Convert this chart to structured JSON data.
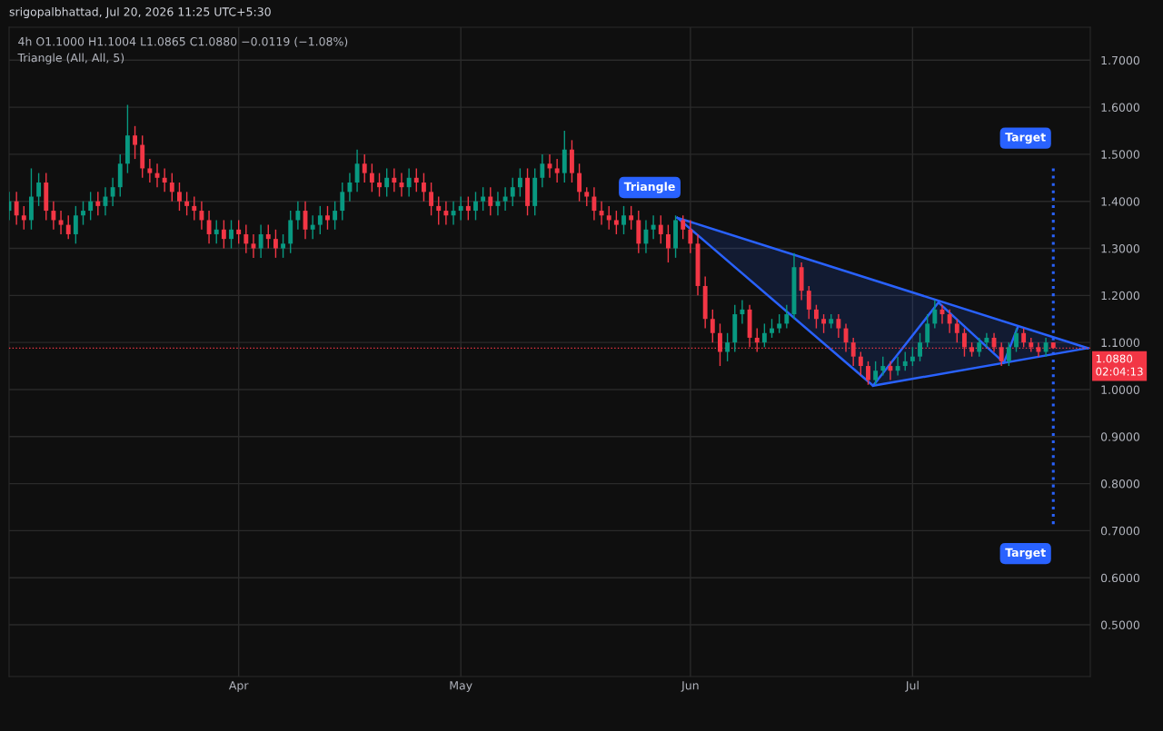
{
  "chart_data": {
    "type": "candlestick",
    "title": "4h O1.1000 H1.1004 L1.0865 C1.0880 −0.0119 (−1.08%)",
    "subtitle": "Triangle (All, All, 5)",
    "annotations": [
      "srigopalbhattad, Jul 20, 2026 11:25 UTC+5:30",
      {
        "text": "Triangle",
        "x": "2026-05-30T06:00",
        "y": 1.365
      },
      {
        "text": "Target",
        "x": "2026-07-20",
        "y": 1.47
      },
      {
        "text": "Target",
        "x": "2026-07-20",
        "y": 0.705
      }
    ],
    "colors": [
      "#089981",
      "#f23645",
      "#f23645",
      "#089981",
      "#089981",
      "#f23645",
      "#f23645",
      "#f23645",
      "#f23645",
      "#089981",
      "#089981",
      "#089981",
      "#f23645",
      "#089981",
      "#089981",
      "#089981",
      "#089981",
      "#f23645",
      "#f23645",
      "#f23645",
      "#f23645",
      "#f23645",
      "#f23645",
      "#f23645",
      "#f23645",
      "#f23645",
      "#f23645",
      "#f23645",
      "#089981",
      "#f23645",
      "#089981",
      "#f23645",
      "#f23645",
      "#f23645",
      "#089981",
      "#f23645",
      "#f23645",
      "#089981",
      "#089981",
      "#089981",
      "#f23645",
      "#089981",
      "#089981",
      "#f23645",
      "#089981",
      "#089981",
      "#089981",
      "#089981",
      "#f23645",
      "#f23645",
      "#f23645",
      "#089981",
      "#f23645",
      "#f23645",
      "#089981",
      "#f23645",
      "#f23645",
      "#f23645",
      "#f23645",
      "#f23645",
      "#089981",
      "#089981",
      "#f23645",
      "#089981",
      "#089981",
      "#f23645",
      "#089981",
      "#089981",
      "#089981",
      "#089981",
      "#f23645",
      "#089981",
      "#089981",
      "#f23645",
      "#f23645",
      "#089981",
      "#f23645",
      "#f23645",
      "#f23645",
      "#f23645",
      "#f23645",
      "#f23645",
      "#f23645",
      "#089981",
      "#f23645",
      "#f23645",
      "#089981",
      "#089981",
      "#f23645",
      "#f23645",
      "#089981",
      "#f23645",
      "#f23645",
      "#f23645",
      "#f23645",
      "#f23645",
      "#f23645",
      "#089981",
      "#089981",
      "#089981",
      "#f23645",
      "#f23645",
      "#089981",
      "#089981",
      "#089981",
      "#089981",
      "#089981",
      "#f23645",
      "#f23645",
      "#f23645",
      "#f23645",
      "#089981",
      "#f23645",
      "#f23645",
      "#f23645",
      "#f23645",
      "#f23645",
      "#089981",
      "#089981",
      "#f23645",
      "#089981",
      "#089981",
      "#089981",
      "#089981",
      "#089981",
      "#089981",
      "#f23645",
      "#f23645",
      "#f23645",
      "#f23645",
      "#f23645",
      "#089981",
      "#089981",
      "#f23645",
      "#f23645",
      "#089981",
      "#089981",
      "#f23645",
      "#f23645",
      "#f23645",
      "#089981",
      "#f23645"
    ],
    "x": [
      "2026-03-01",
      "2026-03-02",
      "2026-03-03",
      "2026-03-04",
      "2026-03-05",
      "2026-03-06",
      "2026-03-07",
      "2026-03-08",
      "2026-03-09",
      "2026-03-10",
      "2026-03-11",
      "2026-03-12",
      "2026-03-13",
      "2026-03-14",
      "2026-03-15",
      "2026-03-16",
      "2026-03-17",
      "2026-03-18",
      "2026-03-19",
      "2026-03-20",
      "2026-03-21",
      "2026-03-22",
      "2026-03-23",
      "2026-03-24",
      "2026-03-25",
      "2026-03-26",
      "2026-03-27",
      "2026-03-28",
      "2026-03-29",
      "2026-03-30",
      "2026-03-31",
      "2026-04-01",
      "2026-04-02",
      "2026-04-03",
      "2026-04-04",
      "2026-04-05",
      "2026-04-06",
      "2026-04-07",
      "2026-04-08",
      "2026-04-09",
      "2026-04-10",
      "2026-04-11",
      "2026-04-12",
      "2026-04-13",
      "2026-04-14",
      "2026-04-15",
      "2026-04-16",
      "2026-04-17",
      "2026-04-18",
      "2026-04-19",
      "2026-04-20",
      "2026-04-21",
      "2026-04-22",
      "2026-04-23",
      "2026-04-24",
      "2026-04-25",
      "2026-04-26",
      "2026-04-27",
      "2026-04-28",
      "2026-04-29",
      "2026-04-30",
      "2026-05-01",
      "2026-05-02",
      "2026-05-03",
      "2026-05-04",
      "2026-05-05",
      "2026-05-06",
      "2026-05-07",
      "2026-05-08",
      "2026-05-09",
      "2026-05-10",
      "2026-05-11",
      "2026-05-12",
      "2026-05-13",
      "2026-05-14",
      "2026-05-15",
      "2026-05-16",
      "2026-05-17",
      "2026-05-18",
      "2026-05-19",
      "2026-05-20",
      "2026-05-21",
      "2026-05-22",
      "2026-05-23",
      "2026-05-24",
      "2026-05-25",
      "2026-05-26",
      "2026-05-27",
      "2026-05-28",
      "2026-05-29",
      "2026-05-30",
      "2026-05-31",
      "2026-06-01",
      "2026-06-02",
      "2026-06-03",
      "2026-06-04",
      "2026-06-05",
      "2026-06-06",
      "2026-06-07",
      "2026-06-08",
      "2026-06-09",
      "2026-06-10",
      "2026-06-11",
      "2026-06-12",
      "2026-06-13",
      "2026-06-14",
      "2026-06-15",
      "2026-06-16",
      "2026-06-17",
      "2026-06-18",
      "2026-06-19",
      "2026-06-20",
      "2026-06-21",
      "2026-06-22",
      "2026-06-23",
      "2026-06-24",
      "2026-06-25",
      "2026-06-26",
      "2026-06-27",
      "2026-06-28",
      "2026-06-29",
      "2026-06-30",
      "2026-07-01",
      "2026-07-02",
      "2026-07-03",
      "2026-07-04",
      "2026-07-05",
      "2026-07-06",
      "2026-07-07",
      "2026-07-08",
      "2026-07-09",
      "2026-07-10",
      "2026-07-11",
      "2026-07-12",
      "2026-07-13",
      "2026-07-14",
      "2026-07-15",
      "2026-07-16",
      "2026-07-17",
      "2026-07-18",
      "2026-07-19",
      "2026-07-20"
    ],
    "ohlc": [
      [
        1.38,
        1.42,
        1.36,
        1.4
      ],
      [
        1.4,
        1.42,
        1.35,
        1.37
      ],
      [
        1.37,
        1.39,
        1.34,
        1.36
      ],
      [
        1.36,
        1.47,
        1.34,
        1.41
      ],
      [
        1.41,
        1.46,
        1.39,
        1.44
      ],
      [
        1.44,
        1.46,
        1.36,
        1.38
      ],
      [
        1.38,
        1.4,
        1.34,
        1.36
      ],
      [
        1.36,
        1.38,
        1.33,
        1.35
      ],
      [
        1.35,
        1.37,
        1.32,
        1.33
      ],
      [
        1.33,
        1.39,
        1.31,
        1.37
      ],
      [
        1.37,
        1.4,
        1.35,
        1.38
      ],
      [
        1.38,
        1.42,
        1.36,
        1.4
      ],
      [
        1.4,
        1.42,
        1.37,
        1.39
      ],
      [
        1.39,
        1.43,
        1.37,
        1.41
      ],
      [
        1.41,
        1.45,
        1.39,
        1.43
      ],
      [
        1.43,
        1.5,
        1.41,
        1.48
      ],
      [
        1.48,
        1.605,
        1.46,
        1.54
      ],
      [
        1.54,
        1.56,
        1.49,
        1.52
      ],
      [
        1.52,
        1.54,
        1.45,
        1.47
      ],
      [
        1.47,
        1.49,
        1.44,
        1.46
      ],
      [
        1.46,
        1.48,
        1.43,
        1.45
      ],
      [
        1.45,
        1.47,
        1.42,
        1.44
      ],
      [
        1.44,
        1.46,
        1.4,
        1.42
      ],
      [
        1.42,
        1.44,
        1.38,
        1.4
      ],
      [
        1.4,
        1.42,
        1.37,
        1.39
      ],
      [
        1.39,
        1.41,
        1.36,
        1.38
      ],
      [
        1.38,
        1.4,
        1.34,
        1.36
      ],
      [
        1.36,
        1.38,
        1.31,
        1.33
      ],
      [
        1.33,
        1.36,
        1.31,
        1.34
      ],
      [
        1.34,
        1.36,
        1.3,
        1.32
      ],
      [
        1.32,
        1.36,
        1.3,
        1.34
      ],
      [
        1.34,
        1.36,
        1.31,
        1.33
      ],
      [
        1.33,
        1.35,
        1.29,
        1.31
      ],
      [
        1.31,
        1.33,
        1.28,
        1.3
      ],
      [
        1.3,
        1.35,
        1.28,
        1.33
      ],
      [
        1.33,
        1.35,
        1.3,
        1.32
      ],
      [
        1.32,
        1.34,
        1.28,
        1.3
      ],
      [
        1.3,
        1.33,
        1.28,
        1.31
      ],
      [
        1.31,
        1.38,
        1.29,
        1.36
      ],
      [
        1.36,
        1.4,
        1.34,
        1.38
      ],
      [
        1.38,
        1.4,
        1.32,
        1.34
      ],
      [
        1.34,
        1.37,
        1.32,
        1.35
      ],
      [
        1.35,
        1.39,
        1.33,
        1.37
      ],
      [
        1.37,
        1.39,
        1.34,
        1.36
      ],
      [
        1.36,
        1.4,
        1.34,
        1.38
      ],
      [
        1.38,
        1.44,
        1.36,
        1.42
      ],
      [
        1.42,
        1.46,
        1.4,
        1.44
      ],
      [
        1.44,
        1.51,
        1.42,
        1.48
      ],
      [
        1.48,
        1.5,
        1.44,
        1.46
      ],
      [
        1.46,
        1.48,
        1.42,
        1.44
      ],
      [
        1.44,
        1.46,
        1.41,
        1.43
      ],
      [
        1.43,
        1.47,
        1.41,
        1.45
      ],
      [
        1.45,
        1.47,
        1.42,
        1.44
      ],
      [
        1.44,
        1.46,
        1.41,
        1.43
      ],
      [
        1.43,
        1.47,
        1.41,
        1.45
      ],
      [
        1.45,
        1.47,
        1.42,
        1.44
      ],
      [
        1.44,
        1.46,
        1.4,
        1.42
      ],
      [
        1.42,
        1.44,
        1.37,
        1.39
      ],
      [
        1.39,
        1.41,
        1.35,
        1.38
      ],
      [
        1.38,
        1.4,
        1.35,
        1.37
      ],
      [
        1.37,
        1.4,
        1.35,
        1.38
      ],
      [
        1.38,
        1.41,
        1.36,
        1.39
      ],
      [
        1.39,
        1.41,
        1.36,
        1.38
      ],
      [
        1.38,
        1.42,
        1.36,
        1.4
      ],
      [
        1.4,
        1.43,
        1.38,
        1.41
      ],
      [
        1.41,
        1.43,
        1.37,
        1.39
      ],
      [
        1.39,
        1.42,
        1.37,
        1.4
      ],
      [
        1.4,
        1.43,
        1.38,
        1.41
      ],
      [
        1.41,
        1.45,
        1.39,
        1.43
      ],
      [
        1.43,
        1.47,
        1.41,
        1.45
      ],
      [
        1.45,
        1.47,
        1.37,
        1.39
      ],
      [
        1.39,
        1.47,
        1.37,
        1.45
      ],
      [
        1.45,
        1.5,
        1.43,
        1.48
      ],
      [
        1.48,
        1.5,
        1.45,
        1.47
      ],
      [
        1.47,
        1.49,
        1.44,
        1.46
      ],
      [
        1.46,
        1.55,
        1.44,
        1.51
      ],
      [
        1.51,
        1.53,
        1.44,
        1.46
      ],
      [
        1.46,
        1.48,
        1.4,
        1.42
      ],
      [
        1.42,
        1.43,
        1.39,
        1.41
      ],
      [
        1.41,
        1.43,
        1.36,
        1.38
      ],
      [
        1.38,
        1.4,
        1.35,
        1.37
      ],
      [
        1.37,
        1.39,
        1.34,
        1.36
      ],
      [
        1.36,
        1.38,
        1.33,
        1.35
      ],
      [
        1.35,
        1.39,
        1.33,
        1.37
      ],
      [
        1.37,
        1.39,
        1.34,
        1.36
      ],
      [
        1.36,
        1.38,
        1.29,
        1.31
      ],
      [
        1.31,
        1.36,
        1.29,
        1.34
      ],
      [
        1.34,
        1.37,
        1.32,
        1.35
      ],
      [
        1.35,
        1.37,
        1.31,
        1.33
      ],
      [
        1.33,
        1.35,
        1.27,
        1.3
      ],
      [
        1.3,
        1.37,
        1.28,
        1.36
      ],
      [
        1.36,
        1.37,
        1.32,
        1.34
      ],
      [
        1.34,
        1.36,
        1.29,
        1.31
      ],
      [
        1.31,
        1.33,
        1.2,
        1.22
      ],
      [
        1.22,
        1.24,
        1.13,
        1.15
      ],
      [
        1.15,
        1.17,
        1.1,
        1.12
      ],
      [
        1.12,
        1.14,
        1.05,
        1.08
      ],
      [
        1.08,
        1.12,
        1.06,
        1.1
      ],
      [
        1.1,
        1.18,
        1.08,
        1.16
      ],
      [
        1.16,
        1.19,
        1.14,
        1.17
      ],
      [
        1.17,
        1.18,
        1.09,
        1.11
      ],
      [
        1.11,
        1.13,
        1.08,
        1.1
      ],
      [
        1.1,
        1.14,
        1.09,
        1.12
      ],
      [
        1.12,
        1.15,
        1.11,
        1.13
      ],
      [
        1.13,
        1.16,
        1.12,
        1.14
      ],
      [
        1.14,
        1.18,
        1.13,
        1.16
      ],
      [
        1.16,
        1.29,
        1.15,
        1.26
      ],
      [
        1.26,
        1.27,
        1.19,
        1.21
      ],
      [
        1.21,
        1.22,
        1.15,
        1.17
      ],
      [
        1.17,
        1.18,
        1.13,
        1.15
      ],
      [
        1.15,
        1.16,
        1.12,
        1.14
      ],
      [
        1.14,
        1.16,
        1.13,
        1.15
      ],
      [
        1.15,
        1.16,
        1.11,
        1.13
      ],
      [
        1.13,
        1.14,
        1.08,
        1.1
      ],
      [
        1.1,
        1.11,
        1.05,
        1.07
      ],
      [
        1.07,
        1.08,
        1.03,
        1.05
      ],
      [
        1.05,
        1.06,
        1.01,
        1.02
      ],
      [
        1.02,
        1.06,
        1.01,
        1.04
      ],
      [
        1.04,
        1.07,
        1.03,
        1.05
      ],
      [
        1.05,
        1.06,
        1.02,
        1.04
      ],
      [
        1.04,
        1.07,
        1.03,
        1.05
      ],
      [
        1.05,
        1.08,
        1.04,
        1.06
      ],
      [
        1.06,
        1.09,
        1.05,
        1.07
      ],
      [
        1.07,
        1.12,
        1.06,
        1.1
      ],
      [
        1.1,
        1.16,
        1.09,
        1.14
      ],
      [
        1.14,
        1.19,
        1.13,
        1.17
      ],
      [
        1.17,
        1.18,
        1.14,
        1.16
      ],
      [
        1.16,
        1.17,
        1.12,
        1.14
      ],
      [
        1.14,
        1.15,
        1.1,
        1.12
      ],
      [
        1.12,
        1.13,
        1.07,
        1.09
      ],
      [
        1.09,
        1.1,
        1.07,
        1.08
      ],
      [
        1.08,
        1.11,
        1.07,
        1.1
      ],
      [
        1.1,
        1.12,
        1.09,
        1.11
      ],
      [
        1.11,
        1.12,
        1.08,
        1.09
      ],
      [
        1.09,
        1.1,
        1.05,
        1.06
      ],
      [
        1.06,
        1.1,
        1.05,
        1.09
      ],
      [
        1.09,
        1.13,
        1.08,
        1.12
      ],
      [
        1.12,
        1.13,
        1.09,
        1.1
      ],
      [
        1.1,
        1.11,
        1.08,
        1.09
      ],
      [
        1.09,
        1.1,
        1.07,
        1.08
      ],
      [
        1.08,
        1.11,
        1.07,
        1.1
      ],
      [
        1.1,
        1.1004,
        1.0865,
        1.088
      ]
    ],
    "series": [
      {
        "type": "line",
        "color": "#2962ff",
        "x": [
          "2026-05-30T06:00",
          "2026-06-25T16:00",
          "2026-07-24T16:00"
        ],
        "values": [
          1.365,
          1.233,
          1.088
        ],
        "lower": [
          1.365,
          1.008,
          1.088
        ],
        "upper": [
          1.365,
          1.233,
          1.088
        ]
      },
      {
        "type": "line",
        "color": "#2962ff",
        "x": [
          "2026-05-30T06:00",
          "2026-06-25T16:00",
          "2026-07-04T12:00",
          "2026-07-13T08:00",
          "2026-07-15T04:00"
        ],
        "values": [
          1.365,
          1.008,
          1.185,
          1.057,
          1.131
        ]
      },
      {
        "type": "line",
        "color": "#2962ff",
        "x": [
          "2026-06-25T16:00",
          "2026-07-24T16:00"
        ],
        "values": [
          1.008,
          1.088
        ]
      },
      {
        "type": "line",
        "color": "#2962ff",
        "line_style": "dotted",
        "x": [
          "2026-07-20",
          "2026-07-20"
        ],
        "values": [
          1.47,
          0.705
        ]
      }
    ],
    "ref_lines": [
      {
        "axis": "y",
        "value": 1.088,
        "label": "1.0880\n02:04:13",
        "color": "#f23645",
        "line_style": "dotted"
      }
    ],
    "xlim": [
      "2026-03-01",
      "2026-07-25"
    ],
    "xticks": [
      {
        "value": "2026-04-01",
        "label": "Apr"
      },
      {
        "value": "2026-05-01",
        "label": "May"
      },
      {
        "value": "2026-06-01",
        "label": "Jun"
      },
      {
        "value": "2026-07-01",
        "label": "Jul"
      }
    ],
    "ylim": [
      0.39,
      1.77
    ],
    "yticks": [
      {
        "value": 0.5,
        "label": "0.5000"
      },
      {
        "value": 0.6,
        "label": "0.6000"
      },
      {
        "value": 0.7,
        "label": "0.7000"
      },
      {
        "value": 0.8,
        "label": "0.8000"
      },
      {
        "value": 0.9,
        "label": "0.9000"
      },
      {
        "value": 1.0,
        "label": "1.0000"
      },
      {
        "value": 1.1,
        "label": "1.1000"
      },
      {
        "value": 1.2,
        "label": "1.2000"
      },
      {
        "value": 1.3,
        "label": "1.3000"
      },
      {
        "value": 1.4,
        "label": "1.4000"
      },
      {
        "value": 1.5,
        "label": "1.5000"
      },
      {
        "value": 1.6,
        "label": "1.6000"
      },
      {
        "value": 1.7,
        "label": "1.7000"
      }
    ],
    "grid": true
  }
}
